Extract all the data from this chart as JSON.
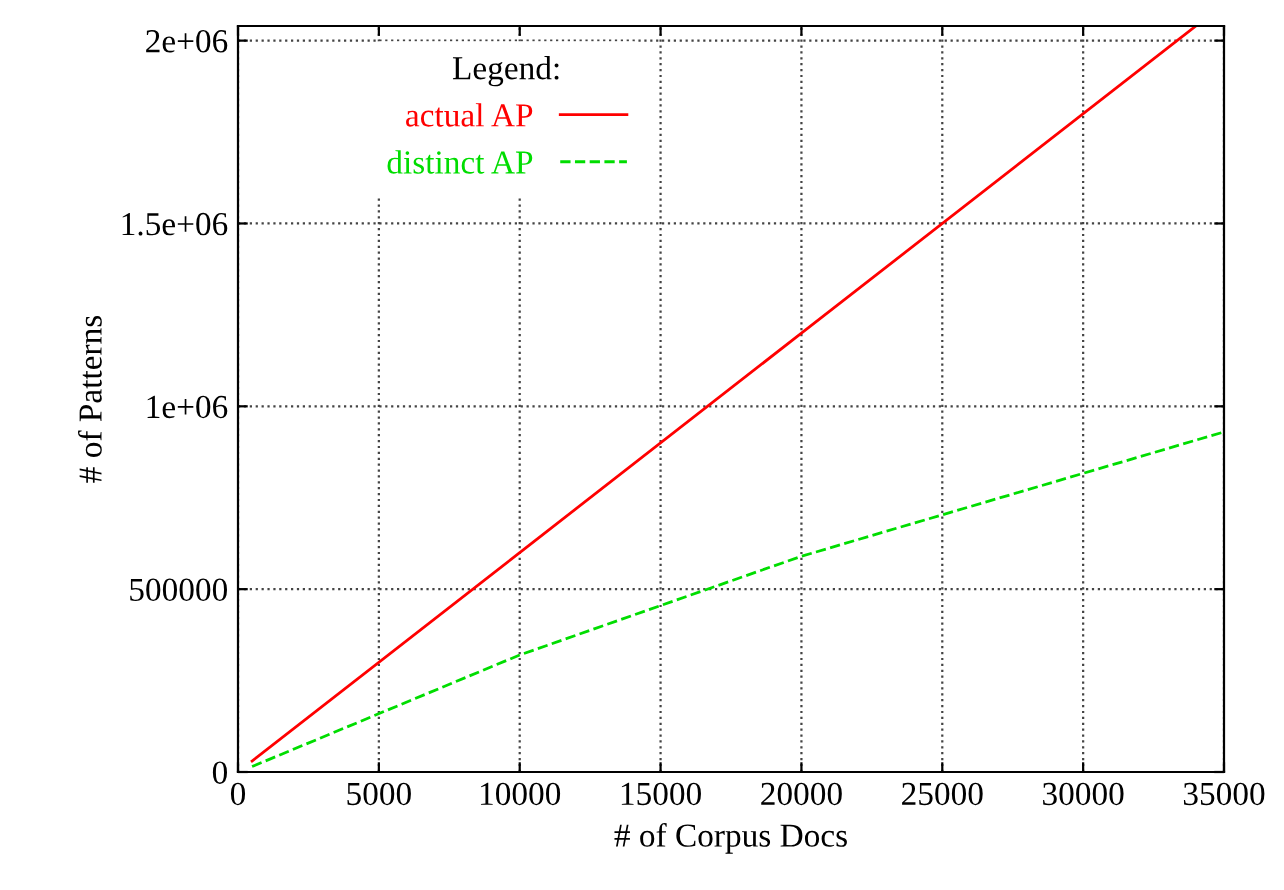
{
  "chart_data": {
    "type": "line",
    "xlabel": "# of Corpus Docs",
    "ylabel": "# of Patterns",
    "legend_title": "Legend:",
    "legend": "top left",
    "x": [
      500,
      10000,
      20000,
      34000
    ],
    "series": [
      {
        "name": "actual AP",
        "color": "#ff0000",
        "line_style": "solid",
        "values": [
          30000,
          600000,
          1200000,
          2040000
        ]
      },
      {
        "name": "distinct AP",
        "color": "#00dd00",
        "line_style": "dashed",
        "x": [
          500,
          10000,
          20000,
          35000
        ],
        "values": [
          15000,
          320000,
          590000,
          930000
        ]
      }
    ],
    "xlim": [
      0,
      35000
    ],
    "xticks": [
      0,
      5000,
      10000,
      15000,
      20000,
      25000,
      30000,
      35000
    ],
    "ylim": [
      0,
      2040000
    ],
    "yticks": [
      0,
      500000,
      {
        "value": 1000000,
        "label": "1e+06"
      },
      {
        "value": 1500000,
        "label": "1.5e+06"
      },
      {
        "value": 2000000,
        "label": "2e+06"
      }
    ],
    "grid": true,
    "marker": "none"
  }
}
